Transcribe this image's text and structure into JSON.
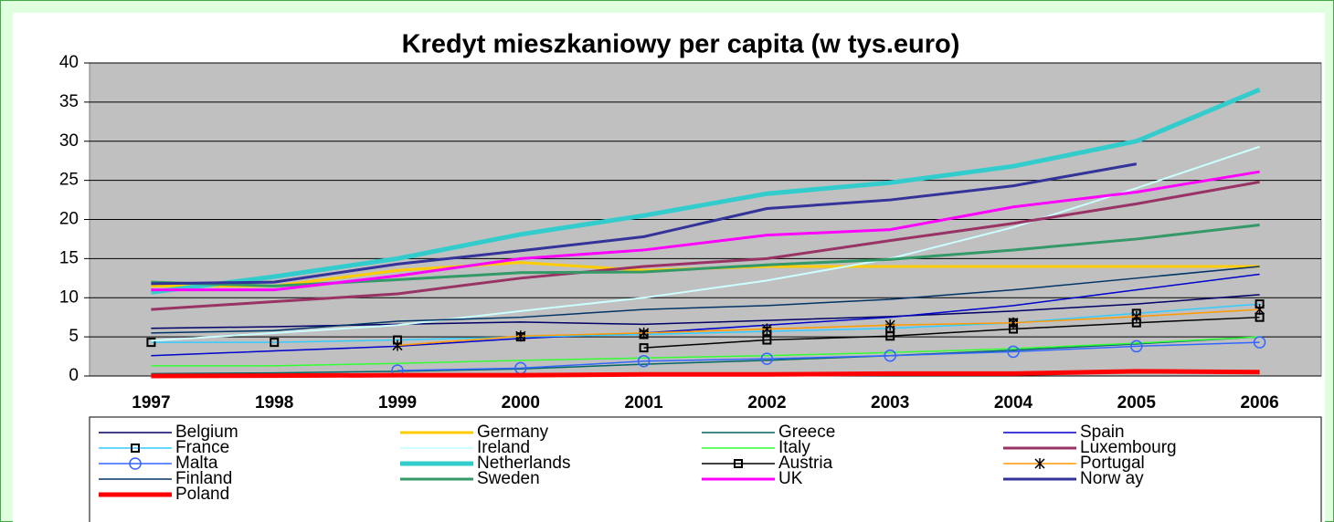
{
  "chart_data": {
    "type": "line",
    "title": "Kredyt mieszkaniowy per capita (w tys.euro)",
    "categories": [
      "1997",
      "1998",
      "1999",
      "2000",
      "2001",
      "2002",
      "2003",
      "2004",
      "2005",
      "2006"
    ],
    "ylim": [
      0,
      40
    ],
    "yticks": [
      0,
      5,
      10,
      15,
      20,
      25,
      30,
      35,
      40
    ],
    "grid": true,
    "series": [
      {
        "name": "Belgium",
        "color": "#000066",
        "width": 1.5,
        "values": [
          6.1,
          6.3,
          6.6,
          6.9,
          6.6,
          7.1,
          7.6,
          8.3,
          9.2,
          10.4
        ]
      },
      {
        "name": "Germany",
        "color": "#ffcc00",
        "width": 3,
        "values": [
          11.5,
          11.5,
          13.5,
          14.5,
          13.5,
          14,
          14,
          14,
          14,
          14
        ]
      },
      {
        "name": "Greece",
        "color": "#006666",
        "width": 1.5,
        "values": [
          0.3,
          0.4,
          0.6,
          0.9,
          1.5,
          2.0,
          2.6,
          3.3,
          4.1,
          5.0
        ]
      },
      {
        "name": "Spain",
        "color": "#0000cc",
        "width": 1.5,
        "values": [
          2.6,
          3.2,
          3.8,
          4.8,
          5.5,
          6.5,
          7.5,
          9,
          11,
          13
        ]
      },
      {
        "name": "France",
        "color": "#33ccff",
        "width": 1.5,
        "marker": "square",
        "values": [
          4.3,
          4.3,
          4.6,
          5,
          5.3,
          5.7,
          6.1,
          6.8,
          8,
          9.2
        ]
      },
      {
        "name": "Ireland",
        "color": "#ccffff",
        "width": 2,
        "values": [
          4.5,
          5.5,
          6.5,
          8.3,
          10,
          12.2,
          15,
          19,
          24,
          29.3
        ]
      },
      {
        "name": "Italy",
        "color": "#33ff33",
        "width": 1.5,
        "values": [
          1.3,
          1.3,
          1.6,
          2,
          2.3,
          2.6,
          3,
          3.5,
          4.2,
          5
        ]
      },
      {
        "name": "Luxembourg",
        "color": "#993366",
        "width": 3,
        "values": [
          8.5,
          9.5,
          10.5,
          12.5,
          14,
          15,
          17.3,
          19.5,
          22,
          24.8
        ]
      },
      {
        "name": "Malta",
        "color": "#3366ff",
        "width": 1.5,
        "marker": "circle",
        "values": [
          null,
          null,
          0.7,
          1,
          1.9,
          2.2,
          2.6,
          3.1,
          3.8,
          4.3
        ]
      },
      {
        "name": "Netherlands",
        "color": "#33cccc",
        "width": 5,
        "values": [
          10.7,
          12.7,
          15,
          18.1,
          20.5,
          23.3,
          24.7,
          26.8,
          30,
          36.6
        ]
      },
      {
        "name": "Austria",
        "color": "#000000",
        "width": 1.5,
        "marker": "square",
        "values": [
          null,
          null,
          null,
          null,
          3.6,
          4.6,
          5.1,
          6,
          6.8,
          7.5
        ]
      },
      {
        "name": "Portugal",
        "color": "#ff9900",
        "width": 1.5,
        "marker": "star",
        "values": [
          null,
          null,
          3.9,
          5.1,
          5.5,
          6,
          6.5,
          6.8,
          7.6,
          8.5
        ]
      },
      {
        "name": "Finland",
        "color": "#003366",
        "width": 1.5,
        "values": [
          5.5,
          5.8,
          7,
          7.5,
          8.5,
          9,
          9.8,
          11,
          12.5,
          14
        ]
      },
      {
        "name": "Sweden",
        "color": "#339966",
        "width": 3,
        "values": [
          12,
          11.5,
          12.3,
          13.2,
          13.3,
          14.2,
          14.9,
          16.1,
          17.5,
          19.3
        ]
      },
      {
        "name": "UK",
        "color": "#ff00ff",
        "width": 3,
        "values": [
          11,
          11,
          12.8,
          15,
          16.1,
          18,
          18.7,
          21.6,
          23.5,
          26.1
        ]
      },
      {
        "name": "Norw ay",
        "color": "#333399",
        "width": 3,
        "values": [
          11.8,
          12,
          14.3,
          16,
          17.8,
          21.4,
          22.5,
          24.3,
          27.1,
          null
        ]
      },
      {
        "name": "Poland",
        "color": "#ff0000",
        "width": 5,
        "values": [
          0,
          0.05,
          0.1,
          0.1,
          0.2,
          0.2,
          0.3,
          0.3,
          0.6,
          0.5
        ]
      }
    ]
  }
}
